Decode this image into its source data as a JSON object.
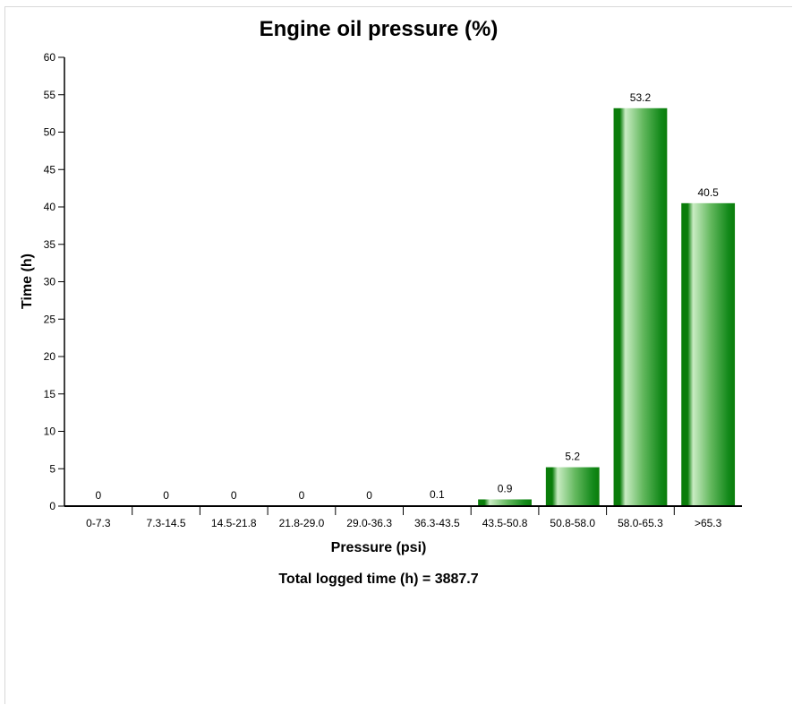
{
  "chart_data": {
    "type": "bar",
    "title": "Engine oil pressure (%)",
    "xlabel": "Pressure (psi)",
    "ylabel": "Time (h)",
    "categories": [
      "0-7.3",
      "7.3-14.5",
      "14.5-21.8",
      "21.8-29.0",
      "29.0-36.3",
      "36.3-43.5",
      "43.5-50.8",
      "50.8-58.0",
      "58.0-65.3",
      ">65.3"
    ],
    "values": [
      0,
      0,
      0,
      0,
      0,
      0.1,
      0.9,
      5.2,
      53.2,
      40.5
    ],
    "data_labels": [
      "0",
      "0",
      "0",
      "0",
      "0",
      "0.1",
      "0.9",
      "5.2",
      "53.2",
      "40.5"
    ],
    "ylim": [
      0,
      60
    ],
    "yticks": [
      0,
      5,
      10,
      15,
      20,
      25,
      30,
      35,
      40,
      45,
      50,
      55,
      60
    ],
    "grid": false,
    "legend": "none",
    "footer": "Total logged time (h) = 3887.7",
    "colors": {
      "bar_dark": "#0a7d0a",
      "bar_light": "#b6e0b0",
      "axis": "#000000"
    }
  }
}
